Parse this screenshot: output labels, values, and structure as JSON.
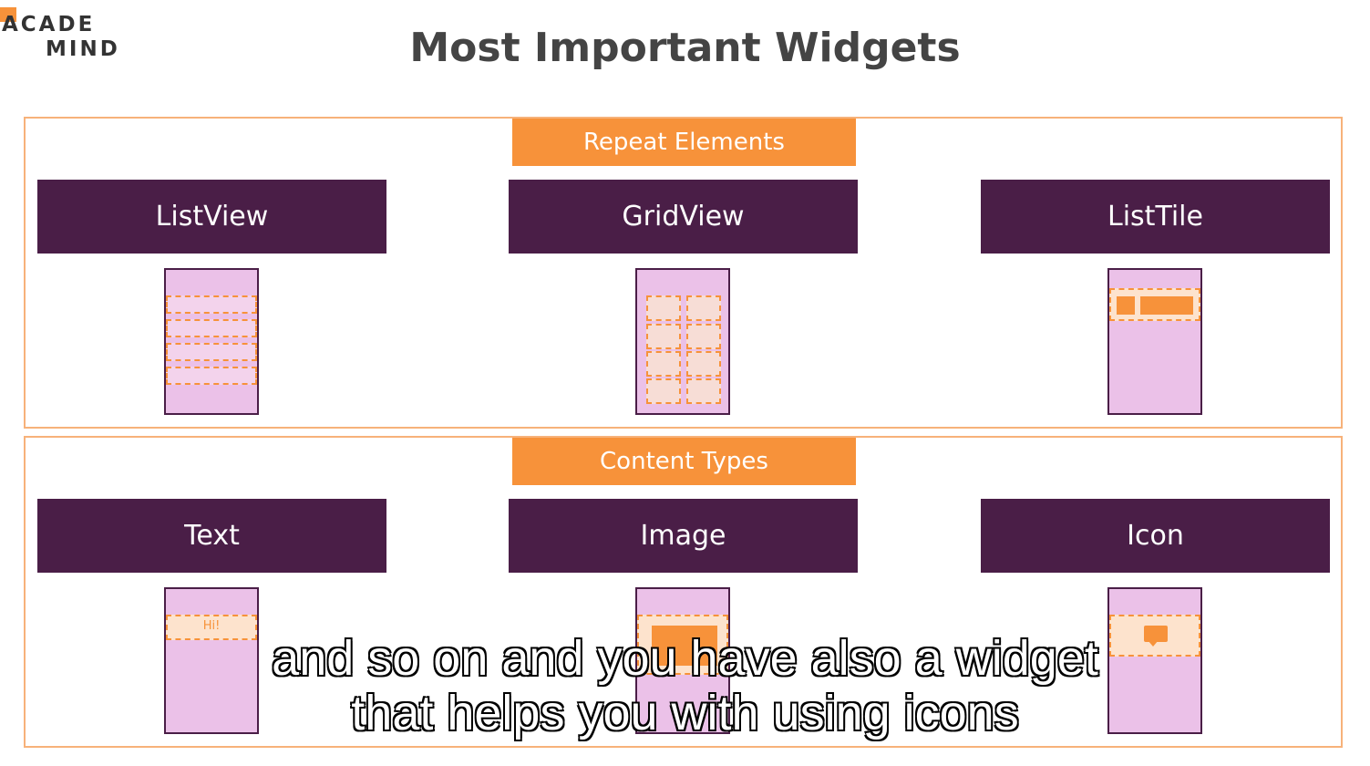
{
  "logo": {
    "line1": "ACADE",
    "line2": "MIND"
  },
  "title": "Most Important Widgets",
  "sections": [
    {
      "header": "Repeat Elements",
      "widgets": [
        {
          "label": "ListView"
        },
        {
          "label": "GridView"
        },
        {
          "label": "ListTile"
        }
      ]
    },
    {
      "header": "Content Types",
      "widgets": [
        {
          "label": "Text",
          "sample": "Hi!"
        },
        {
          "label": "Image"
        },
        {
          "label": "Icon"
        }
      ]
    }
  ],
  "subtitles": [
    "and so on and you have also a widget",
    "that helps you with using icons"
  ],
  "colors": {
    "accent": "#f7923a",
    "dark_purple": "#4a1e47",
    "phone_fill": "#ebc1e8",
    "section_border": "#f7b27a"
  },
  "icons": [
    "chat-bubble-icon",
    "image-placeholder-icon"
  ]
}
